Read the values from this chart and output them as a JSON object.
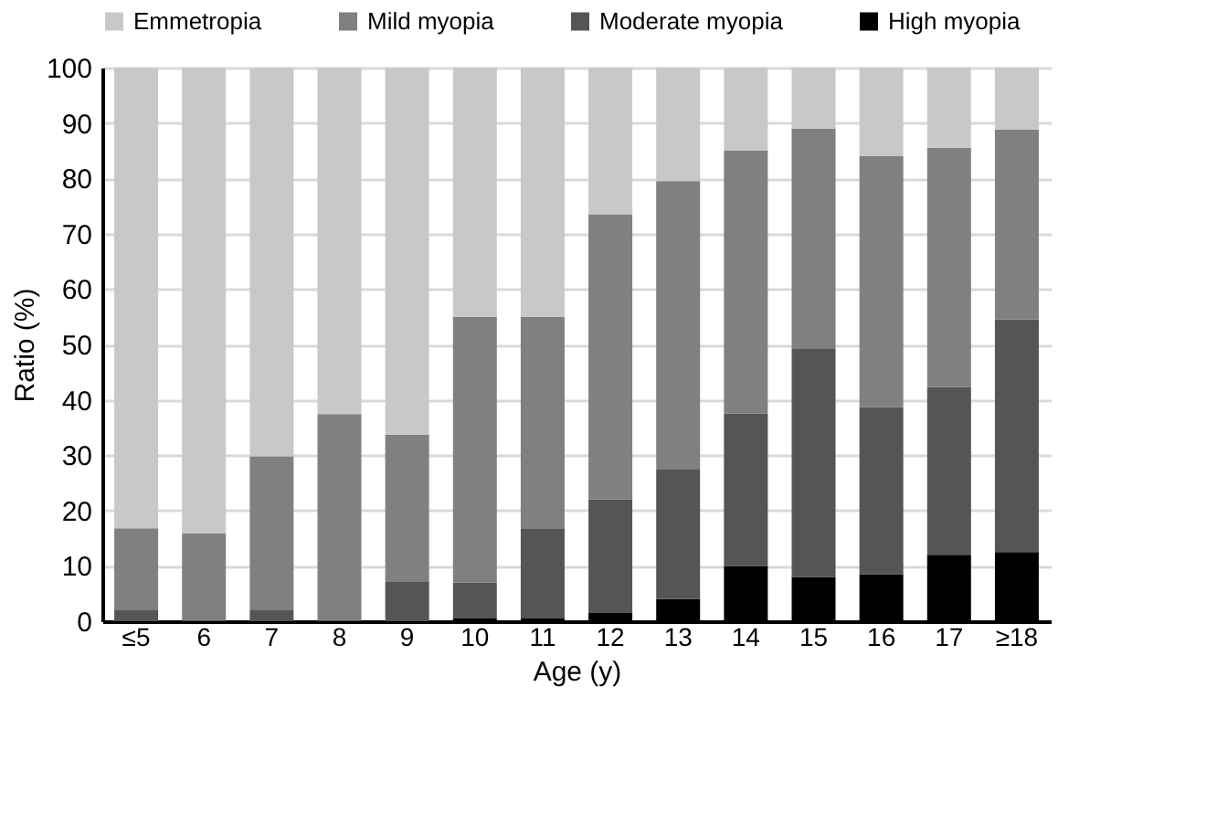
{
  "chart_data": {
    "type": "bar",
    "stacked": true,
    "xlabel": "Age (y)",
    "ylabel": "Ratio (%)",
    "categories": [
      "≤5",
      "6",
      "7",
      "8",
      "9",
      "10",
      "11",
      "12",
      "13",
      "14",
      "15",
      "16",
      "17",
      "≥18"
    ],
    "series": [
      {
        "name": "High myopia",
        "color": "#000000",
        "values": [
          0,
          0,
          0,
          0,
          0,
          0.5,
          0.5,
          1.5,
          4,
          10,
          8,
          8.5,
          12,
          12.5
        ]
      },
      {
        "name": "Moderate myopia",
        "color": "#555555",
        "values": [
          2,
          0.3,
          2,
          0.3,
          7.2,
          6.5,
          16.3,
          20.5,
          23.5,
          27.5,
          41.3,
          30.2,
          30.3,
          42
        ]
      },
      {
        "name": "Mild myopia",
        "color": "#808080",
        "values": [
          14.8,
          15.6,
          27.8,
          37.1,
          26.5,
          48,
          38.2,
          51.5,
          52,
          47.5,
          39.7,
          45.3,
          43.2,
          34.3
        ]
      },
      {
        "name": "Emmetropia",
        "color": "#c8c8c8",
        "values": [
          83.2,
          84.1,
          70.2,
          62.6,
          66.3,
          45,
          45,
          26.5,
          20.5,
          15,
          11,
          16,
          14.5,
          11.2
        ]
      }
    ],
    "ylim": [
      0,
      100
    ],
    "yticks": [
      0,
      10,
      20,
      30,
      40,
      50,
      60,
      70,
      80,
      90,
      100
    ],
    "grid": "y",
    "legend": "top"
  }
}
